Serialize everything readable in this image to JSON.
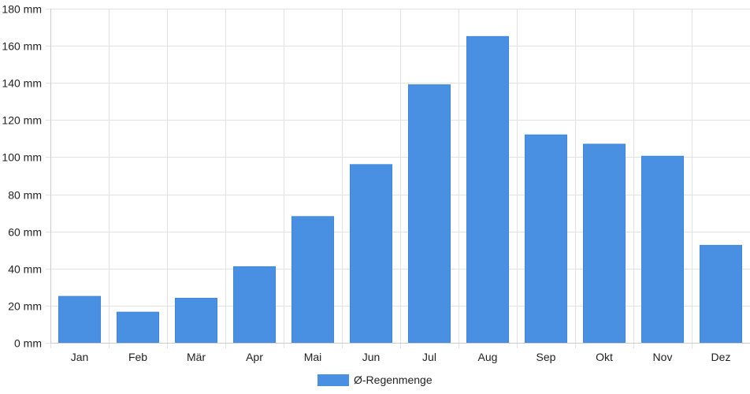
{
  "chart_data": {
    "type": "bar",
    "categories": [
      "Jan",
      "Feb",
      "Mär",
      "Apr",
      "Mai",
      "Jun",
      "Jul",
      "Aug",
      "Sep",
      "Okt",
      "Nov",
      "Dez"
    ],
    "series": [
      {
        "name": "Ø-Regenmenge",
        "color": "#4a90e2",
        "values": [
          25,
          16.5,
          24,
          41,
          68,
          96,
          139,
          165,
          112,
          107,
          100.5,
          52.5
        ]
      }
    ],
    "ylim": [
      0,
      180
    ],
    "y_ticks": [
      0,
      20,
      40,
      60,
      80,
      100,
      120,
      140,
      160,
      180
    ],
    "y_unit": " mm",
    "grid": true,
    "legend_position": "bottom"
  }
}
